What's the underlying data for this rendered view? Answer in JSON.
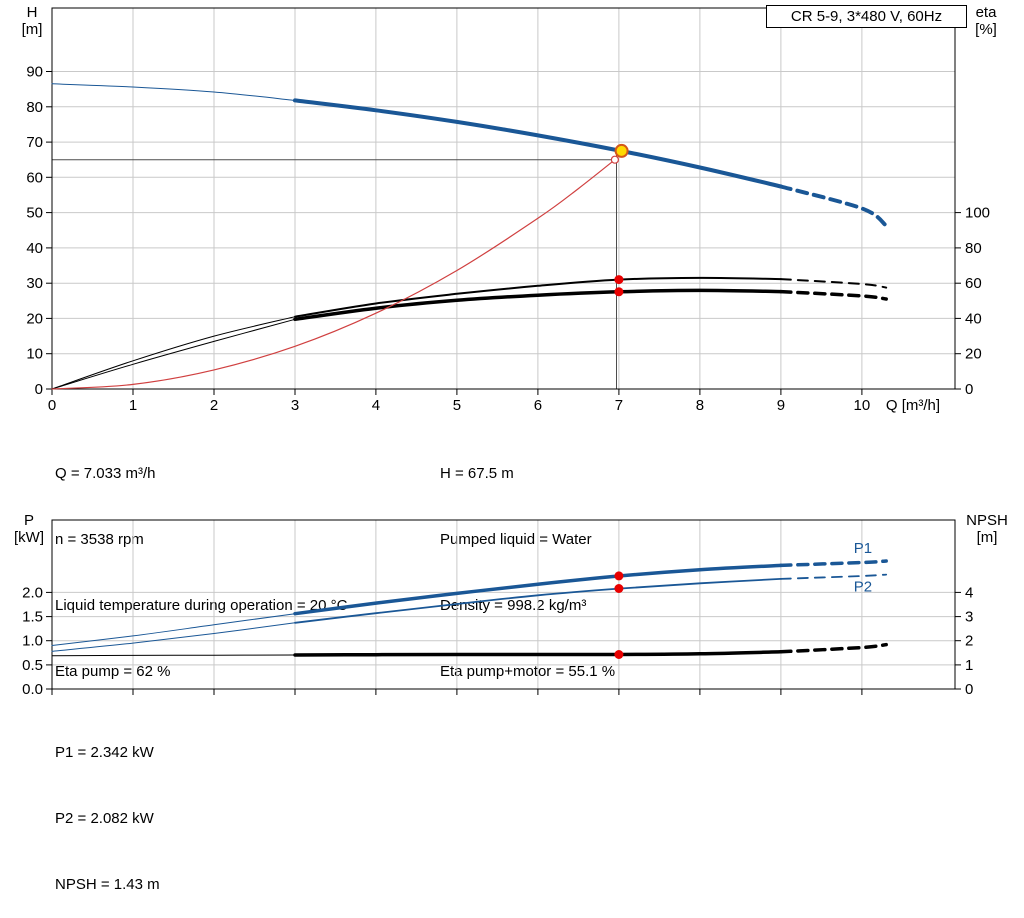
{
  "title_box": {
    "label": "CR 5-9, 3*480 V, 60Hz"
  },
  "colors": {
    "pump_curve": "#1a5796",
    "eta_curve": "#000000",
    "system_curve": "#d04040",
    "dot": "#e80000",
    "duty_fill": "#ffd900",
    "duty_stroke": "#d4581a",
    "grid": "#c9c9c9",
    "frame": "#000000",
    "ref_line": "#4d4d4d",
    "curve_label": "#1a5796"
  },
  "chart_data": [
    {
      "name": "head-efficiency-chart",
      "type": "line",
      "xlabel": "Q [m³/h]",
      "x_axis": {
        "lim": [
          0,
          11.15
        ],
        "ticks": [
          0,
          1,
          2,
          3,
          4,
          5,
          6,
          7,
          8,
          9,
          10
        ],
        "tick_labels": [
          "0",
          "1",
          "2",
          "3",
          "4",
          "5",
          "6",
          "7",
          "8",
          "9",
          "10"
        ],
        "show_labels": true
      },
      "left_axis": {
        "title": "H",
        "unit": "[m]",
        "lim": [
          0,
          108
        ],
        "ticks": [
          0,
          10,
          20,
          30,
          40,
          50,
          60,
          70,
          80,
          90
        ],
        "tick_labels": [
          "0",
          "10",
          "20",
          "30",
          "40",
          "50",
          "60",
          "70",
          "80",
          "90"
        ]
      },
      "right_axis": {
        "title": "eta",
        "unit": "[%]",
        "ticks": [
          0,
          20,
          40,
          60,
          80,
          100
        ],
        "tick_labels": [
          "0",
          "20",
          "40",
          "60",
          "80",
          "100"
        ],
        "scale_to_left": 0.5
      },
      "series": [
        {
          "name": "pump-curve",
          "axis": "left",
          "color": "#1a5796",
          "width": 4,
          "thin_width": 1,
          "thin_until": 3,
          "dash_from": 9,
          "x": [
            0,
            1,
            2,
            3,
            4,
            5,
            6,
            7,
            8,
            9,
            10,
            10.3
          ],
          "y": [
            86.5,
            85.6,
            84.2,
            81.8,
            79.0,
            75.7,
            71.9,
            67.6,
            62.8,
            57.4,
            51.2,
            46.3
          ]
        },
        {
          "name": "eta-pump-curve",
          "axis": "right",
          "color": "#000000",
          "width": 2,
          "thin_width": 1,
          "thin_until": 3,
          "dash_from": 9,
          "x": [
            0,
            1,
            2,
            3,
            4,
            5,
            6,
            7,
            8,
            9,
            10,
            10.3
          ],
          "y": [
            0,
            16,
            30,
            41,
            48.5,
            54,
            58.5,
            62,
            63,
            62.3,
            59.5,
            57.5
          ]
        },
        {
          "name": "eta-pump-motor-curve",
          "axis": "right",
          "color": "#000000",
          "width": 3.5,
          "thin_width": 1,
          "thin_until": 3,
          "dash_from": 9,
          "x": [
            0,
            1,
            2,
            3,
            4,
            5,
            6,
            7,
            8,
            9,
            10,
            10.3
          ],
          "y": [
            0,
            14,
            27,
            39.5,
            45.8,
            50.3,
            53.2,
            55.1,
            55.9,
            55.2,
            52.8,
            51
          ]
        },
        {
          "name": "system-curve",
          "axis": "left",
          "color": "#d04040",
          "width": 1.2,
          "x": [
            0,
            1,
            2,
            3,
            4,
            5,
            6,
            6.5,
            6.95
          ],
          "y": [
            0,
            1.3,
            5.4,
            12.1,
            21.5,
            33.6,
            48.4,
            56.8,
            65
          ]
        }
      ],
      "ref_lines": {
        "h": 65,
        "v": 6.97,
        "v_top": 67.5
      },
      "markers": {
        "duty_point": {
          "x": 7.033,
          "y": 67.5
        },
        "open_circle": {
          "x": 6.95,
          "y": 65
        },
        "dots": [
          {
            "x": 7,
            "y": 62,
            "axis": "right"
          },
          {
            "x": 7,
            "y": 55.1,
            "axis": "right"
          }
        ]
      },
      "labels": []
    },
    {
      "name": "power-npsh-chart",
      "type": "line",
      "xlabel": "",
      "x_axis": {
        "lim": [
          0,
          11.15
        ],
        "ticks": [
          0,
          1,
          2,
          3,
          4,
          5,
          6,
          7,
          8,
          9,
          10
        ],
        "tick_labels": [],
        "show_labels": false
      },
      "left_axis": {
        "title": "P",
        "unit": "[kW]",
        "lim": [
          0,
          3.5
        ],
        "ticks": [
          0,
          0.5,
          1,
          1.5,
          2
        ],
        "tick_labels": [
          "0.0",
          "0.5",
          "1.0",
          "1.5",
          "2.0"
        ]
      },
      "right_axis": {
        "title": "NPSH",
        "unit": "[m]",
        "ticks": [
          0,
          1,
          2,
          3,
          4
        ],
        "tick_labels": [
          "0",
          "1",
          "2",
          "3",
          "4"
        ],
        "scale_to_left": 0.5
      },
      "series": [
        {
          "name": "p1-curve",
          "axis": "left",
          "color": "#1a5796",
          "width": 3.5,
          "thin_width": 1,
          "thin_until": 3,
          "dash_from": 9,
          "x": [
            0,
            1,
            2,
            3,
            4,
            5,
            6,
            7,
            8,
            9,
            10,
            10.3
          ],
          "y": [
            0.9,
            1.1,
            1.33,
            1.56,
            1.78,
            1.98,
            2.17,
            2.34,
            2.47,
            2.56,
            2.62,
            2.65
          ]
        },
        {
          "name": "p2-curve",
          "axis": "left",
          "color": "#1a5796",
          "width": 1.8,
          "thin_width": 1,
          "thin_until": 3,
          "dash_from": 9,
          "x": [
            0,
            1,
            2,
            3,
            4,
            5,
            6,
            7,
            8,
            9,
            10,
            10.3
          ],
          "y": [
            0.78,
            0.95,
            1.15,
            1.37,
            1.57,
            1.76,
            1.94,
            2.08,
            2.19,
            2.28,
            2.34,
            2.37
          ]
        },
        {
          "name": "npsh-curve",
          "axis": "right",
          "color": "#000000",
          "width": 3.5,
          "thin_width": 1,
          "thin_until": 3,
          "dash_from": 9,
          "x": [
            0,
            1,
            2,
            3,
            4,
            5,
            6,
            7,
            8,
            9,
            10,
            10.3
          ],
          "y": [
            1.38,
            1.39,
            1.4,
            1.41,
            1.42,
            1.43,
            1.43,
            1.43,
            1.46,
            1.54,
            1.72,
            1.84
          ]
        }
      ],
      "markers": {
        "dots": [
          {
            "x": 7,
            "y": 2.342,
            "axis": "left"
          },
          {
            "x": 7,
            "y": 2.082,
            "axis": "left"
          },
          {
            "x": 7,
            "y": 1.43,
            "axis": "right"
          }
        ]
      },
      "labels": [
        {
          "text": "P1",
          "x": 9.9,
          "y": 2.92
        },
        {
          "text": "P2",
          "x": 9.9,
          "y": 2.12
        }
      ]
    }
  ],
  "top_info": {
    "left": [
      "Q = 7.033 m³/h",
      "n = 3538 rpm",
      "Liquid temperature during operation = 20 °C",
      "Eta pump = 62 %"
    ],
    "right": [
      "H = 67.5 m",
      "Pumped liquid = Water",
      "Density = 998.2 kg/m³",
      "Eta pump+motor = 55.1 %"
    ]
  },
  "bottom_info": {
    "lines": [
      "P1 = 2.342 kW",
      "P2 = 2.082 kW",
      "NPSH = 1.43 m"
    ]
  }
}
